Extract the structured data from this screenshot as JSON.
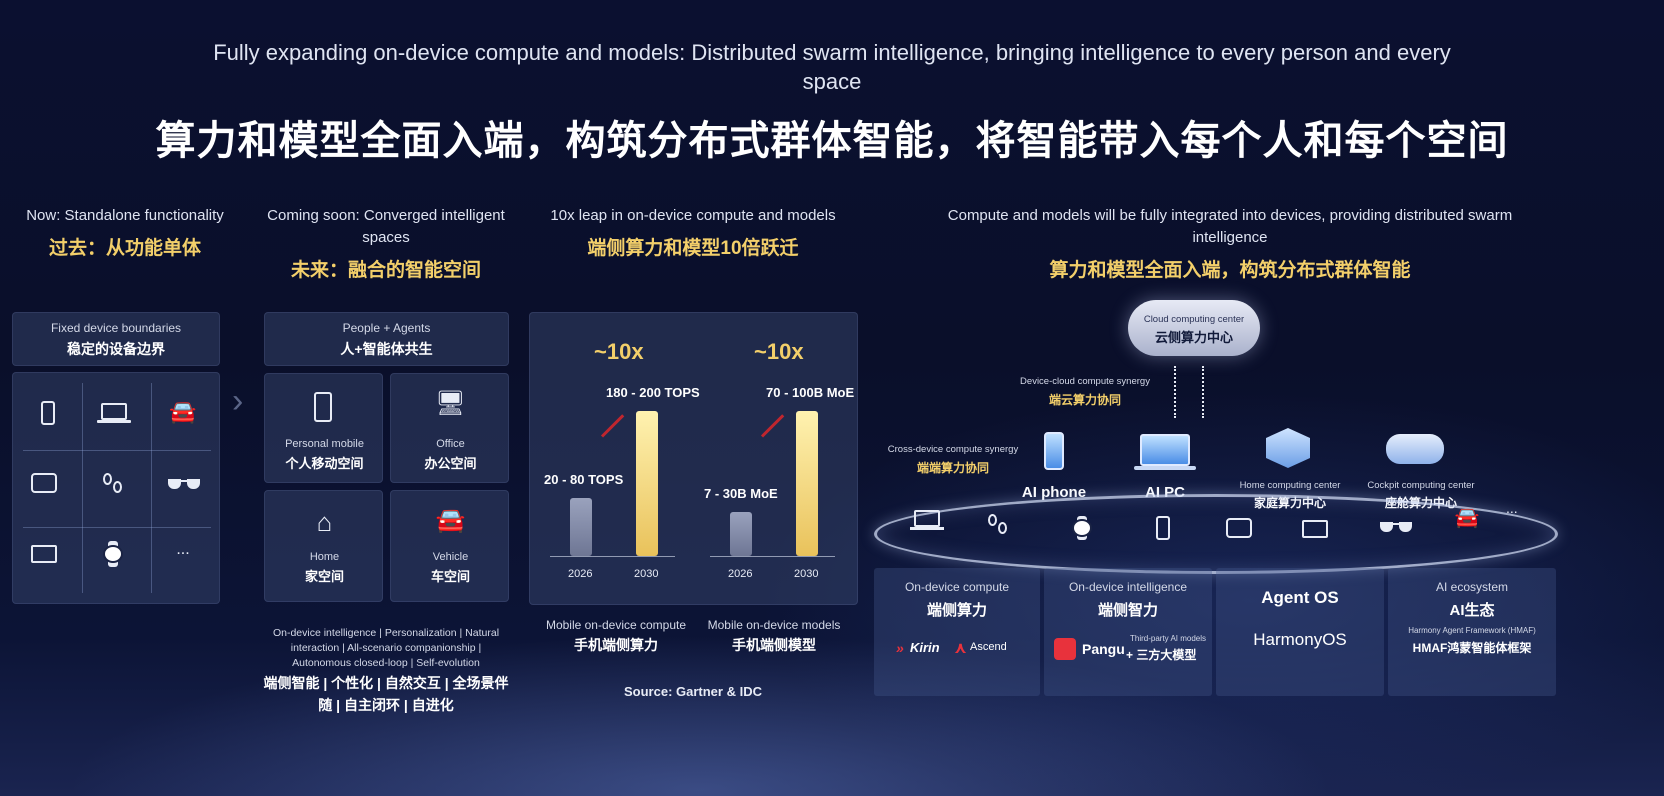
{
  "title": {
    "en": "Fully expanding on-device compute and models: Distributed swarm intelligence, bringing intelligence to every person and every space",
    "cn": "算力和模型全面入端，构筑分布式群体智能，将智能带入每个人和每个空间"
  },
  "col1": {
    "head_en": "Now: Standalone functionality",
    "head_cn": "过去：从功能单体",
    "card_en": "Fixed device boundaries",
    "card_cn": "稳定的设备边界",
    "icons": [
      "phone-icon",
      "laptop-icon",
      "car-icon",
      "tablet-icon",
      "earbuds-icon",
      "glasses-icon",
      "monitor-icon",
      "watch-icon",
      "more-icon"
    ],
    "more": "..."
  },
  "col2": {
    "head_en": "Coming soon: Converged intelligent spaces",
    "head_cn": "未来：融合的智能空间",
    "card_en": "People + Agents",
    "card_cn": "人+智能体共生",
    "tiles": [
      {
        "en": "Personal mobile",
        "cn": "个人移动空间",
        "icon": "person-phone-icon"
      },
      {
        "en": "Office",
        "cn": "办公空间",
        "icon": "office-icon"
      },
      {
        "en": "Home",
        "cn": "家空间",
        "icon": "home-icon"
      },
      {
        "en": "Vehicle",
        "cn": "车空间",
        "icon": "vehicle-icon"
      }
    ],
    "footer_en": "On-device intelligence | Personalization | Natural interaction | All-scenario companionship | Autonomous closed-loop | Self-evolution",
    "footer_cn": "端侧智能 | 个性化 | 自然交互 | 全场景伴随 | 自主闭环 | 自进化"
  },
  "col3": {
    "head_en": "10x leap in on-device compute and models",
    "head_cn": "端侧算力和模型10倍跃迁",
    "source": "Source: Gartner & IDC"
  },
  "chart_data": [
    {
      "type": "bar",
      "categories": [
        "2026",
        "2030"
      ],
      "values": [
        80,
        200
      ],
      "value_labels": [
        "20 - 80 TOPS",
        "180 - 200 TOPS"
      ],
      "multiplier": "~10x",
      "caption_en": "Mobile on-device compute",
      "caption_cn": "手机端侧算力"
    },
    {
      "type": "bar",
      "categories": [
        "2026",
        "2030"
      ],
      "values": [
        30,
        100
      ],
      "value_labels": [
        "7 - 30B MoE",
        "70 - 100B MoE"
      ],
      "multiplier": "~10x",
      "caption_en": "Mobile on-device models",
      "caption_cn": "手机端侧模型"
    }
  ],
  "col4": {
    "head_en": "Compute and models will be fully integrated into devices, providing distributed swarm intelligence",
    "head_cn": "算力和模型全面入端，构筑分布式群体智能",
    "cloud_en": "Cloud computing center",
    "cloud_cn": "云侧算力中心",
    "sync_en": "Device-cloud compute synergy",
    "sync_cn": "端云算力协同",
    "cross_en": "Cross-device compute synergy",
    "cross_cn": "端端算力协同",
    "ai_phone": "AI phone",
    "ai_pc": "AI PC",
    "home_en": "Home computing center",
    "home_cn": "家庭算力中心",
    "cockpit_en": "Cockpit computing center",
    "cockpit_cn": "座舱算力中心",
    "more": "...",
    "pillars": [
      {
        "en": "On-device compute",
        "cn": "端侧算力"
      },
      {
        "en": "On-device intelligence",
        "cn": "端侧智力"
      },
      {
        "en": "",
        "cn": "Agent OS"
      },
      {
        "en": "AI ecosystem",
        "cn": "AI生态"
      }
    ],
    "logos": {
      "kirin": "Kirin",
      "ascend": "Ascend",
      "pangu": "Pangu",
      "third_party_en": "Third-party AI models",
      "third_party_cn": "+ 三方大模型",
      "harmony": "HarmonyOS",
      "hmaf_en": "Harmony Agent Framework (HMAF)",
      "hmaf_cn": "HMAF鸿蒙智能体框架"
    }
  },
  "colors": {
    "accent_gold": "#f3cf6a",
    "background": "#0b1030",
    "kirin_red": "#e8323c"
  }
}
